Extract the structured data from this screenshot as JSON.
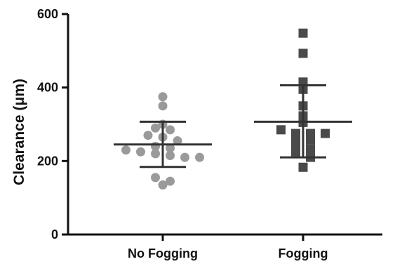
{
  "chart_data": {
    "type": "scatter",
    "title": "",
    "xlabel": "",
    "ylabel": "Clearance  (μm)",
    "ylim": [
      0,
      600
    ],
    "yticks": [
      0,
      200,
      400,
      600
    ],
    "grid": false,
    "categories": [
      "No Fogging",
      "Fogging"
    ],
    "series": [
      {
        "category": "No Fogging",
        "marker": "circle",
        "color": "#9a9a9a",
        "values": [
          375,
          350,
          300,
          290,
          285,
          270,
          265,
          255,
          240,
          235,
          230,
          225,
          220,
          215,
          210,
          210,
          155,
          145,
          135
        ],
        "mean": 245,
        "sd_upper": 307,
        "sd_lower": 184
      },
      {
        "category": "Fogging",
        "marker": "square",
        "color": "#4a4a4a",
        "values": [
          548,
          493,
          415,
          395,
          350,
          323,
          305,
          285,
          275,
          275,
          275,
          262,
          258,
          245,
          233,
          225,
          210,
          183
        ],
        "mean": 307,
        "sd_upper": 406,
        "sd_lower": 210
      }
    ],
    "colors": {
      "axis": "#111111",
      "errorbar": "#333333"
    }
  }
}
